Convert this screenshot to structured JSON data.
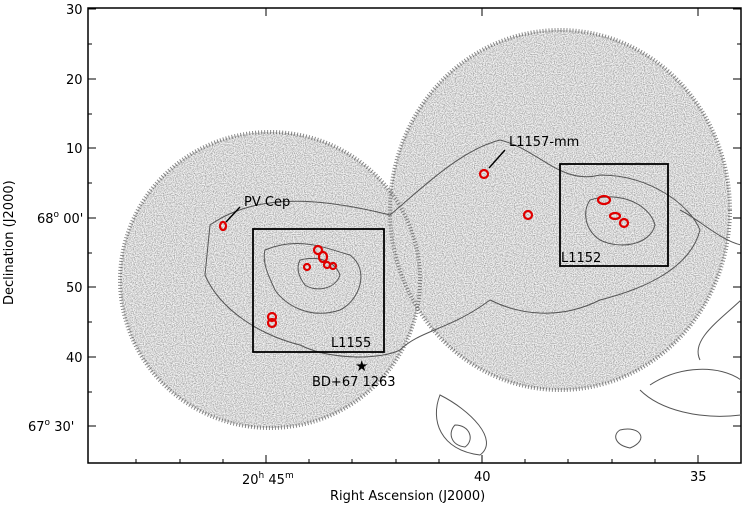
{
  "figure": {
    "xlabel": "Right Ascension (J2000)",
    "ylabel": "Declination (J2000)",
    "x_ticks": [
      {
        "main": "20",
        "sup": "h",
        "rest": " 45",
        "sup2": "m"
      },
      {
        "main": "40",
        "sup": "",
        "rest": "",
        "sup2": ""
      },
      {
        "main": "35",
        "sup": "",
        "rest": "",
        "sup2": ""
      }
    ],
    "y_ticks_plain": [
      "30",
      "20",
      "10",
      "50",
      "40"
    ],
    "y_ticks_deg": [
      {
        "main": "68",
        "sup": "o",
        "rest": " 00'"
      },
      {
        "main": "67",
        "sup": "o",
        "rest": " 30'"
      }
    ],
    "annotations": {
      "pvcep": "PV Cep",
      "l1157": "L1157-mm",
      "l1155": "L1155",
      "l1152": "L1152",
      "star": "BD+67 1263"
    },
    "colors": {
      "emission": "#9a9a9a",
      "contour": "#555555",
      "cores": "#e00000",
      "star": "#000000"
    },
    "markers": {
      "star_symbol": "★"
    }
  }
}
